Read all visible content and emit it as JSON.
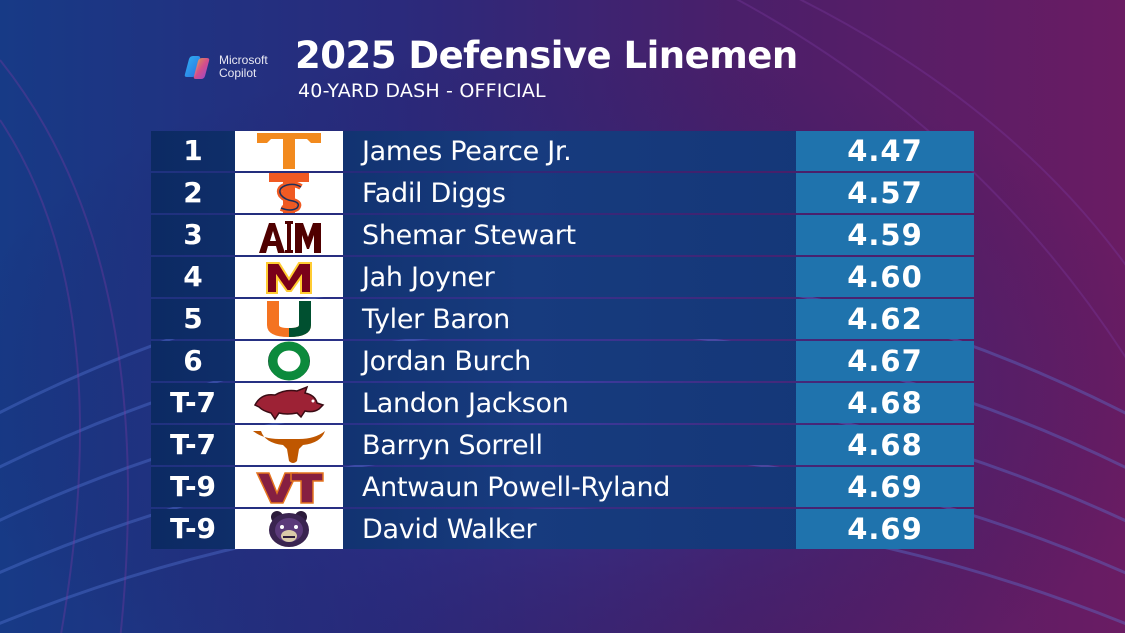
{
  "brand": {
    "line1": "Microsoft",
    "line2": "Copilot"
  },
  "title": "2025 Defensive Linemen",
  "subtitle": "40-YARD DASH - OFFICIAL",
  "rows": [
    {
      "rank": "1",
      "name": "James Pearce Jr.",
      "time": "4.47",
      "logo": "tennessee-logo"
    },
    {
      "rank": "2",
      "name": "Fadil Diggs",
      "time": "4.57",
      "logo": "syracuse-logo"
    },
    {
      "rank": "3",
      "name": "Shemar Stewart",
      "time": "4.59",
      "logo": "texas-am-logo"
    },
    {
      "rank": "4",
      "name": "Jah Joyner",
      "time": "4.60",
      "logo": "minnesota-logo"
    },
    {
      "rank": "5",
      "name": "Tyler Baron",
      "time": "4.62",
      "logo": "miami-logo"
    },
    {
      "rank": "6",
      "name": "Jordan Burch",
      "time": "4.67",
      "logo": "oregon-logo"
    },
    {
      "rank": "T-7",
      "name": "Landon Jackson",
      "time": "4.68",
      "logo": "arkansas-logo"
    },
    {
      "rank": "T-7",
      "name": "Barryn Sorrell",
      "time": "4.68",
      "logo": "texas-longhorn-logo"
    },
    {
      "rank": "T-9",
      "name": "Antwaun Powell-Ryland",
      "time": "4.69",
      "logo": "virginia-tech-logo"
    },
    {
      "rank": "T-9",
      "name": "David Walker",
      "time": "4.69",
      "logo": "central-arkansas-bear-logo"
    }
  ],
  "colors": {
    "background": "#1d1750",
    "row_base": "#133575",
    "time_cell": "#1f73ad",
    "logo_cell": "#ffffff"
  }
}
